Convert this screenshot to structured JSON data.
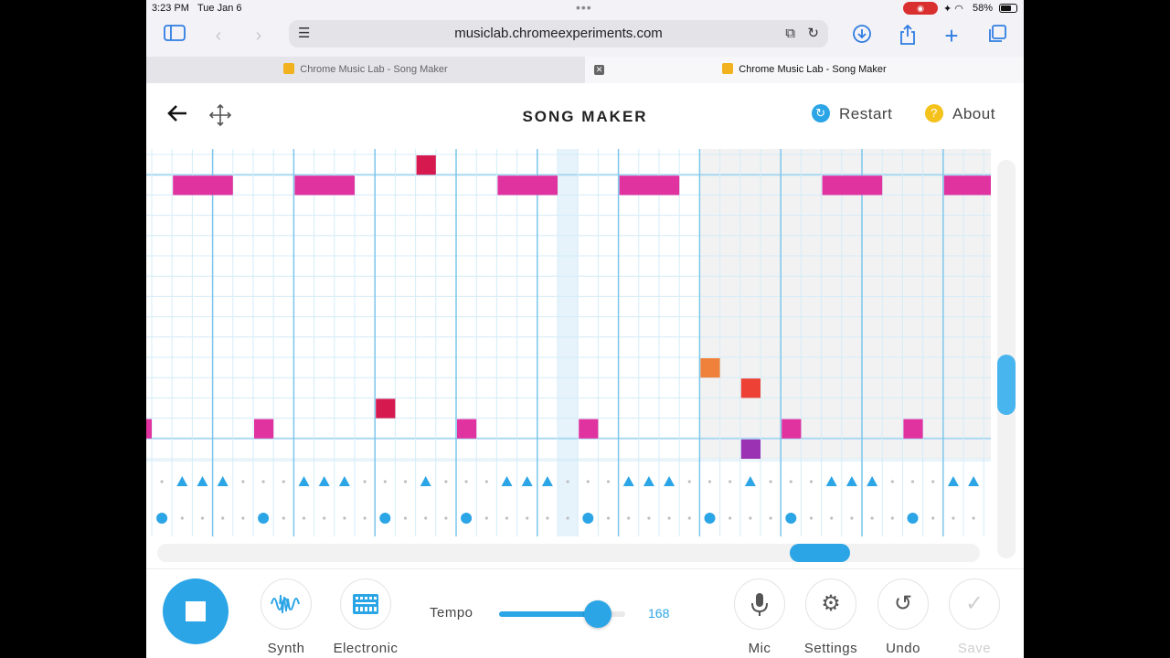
{
  "status_bar": {
    "time": "3:23 PM",
    "date": "Tue Jan 6",
    "battery": "58%"
  },
  "browser": {
    "url": "musiclab.chromeexperiments.com",
    "tabs": [
      {
        "label": "Chrome Music Lab - Song Maker",
        "active": false
      },
      {
        "label": "Chrome Music Lab - Song Maker",
        "active": true
      }
    ]
  },
  "app": {
    "title": "SONG MAKER",
    "restart_label": "Restart",
    "about_label": "About"
  },
  "grid": {
    "columns": 41,
    "melody_rows": 15,
    "bar_every": 4,
    "highlight_column": 20,
    "inactive_from_column": 27,
    "octave_line_rows": [
      1,
      14
    ],
    "notes": [
      {
        "col": 1,
        "row": 1,
        "len": 3,
        "color": "#e0339f"
      },
      {
        "col": 7,
        "row": 1,
        "len": 3,
        "color": "#e0339f"
      },
      {
        "col": 13,
        "row": 0,
        "len": 1,
        "color": "#d6194f"
      },
      {
        "col": 17,
        "row": 1,
        "len": 3,
        "color": "#e0339f"
      },
      {
        "col": 23,
        "row": 1,
        "len": 3,
        "color": "#e0339f"
      },
      {
        "col": 33,
        "row": 1,
        "len": 3,
        "color": "#e0339f"
      },
      {
        "col": 39,
        "row": 1,
        "len": 3,
        "color": "#e0339f"
      },
      {
        "col": 27,
        "row": 10,
        "len": 1,
        "color": "#f0813a"
      },
      {
        "col": 29,
        "row": 11,
        "len": 1,
        "color": "#ec4134"
      },
      {
        "col": 11,
        "row": 12,
        "len": 1,
        "color": "#d6194f"
      },
      {
        "col": -1,
        "row": 13,
        "len": 1,
        "color": "#e0339f"
      },
      {
        "col": 5,
        "row": 13,
        "len": 1,
        "color": "#e0339f"
      },
      {
        "col": 15,
        "row": 13,
        "len": 1,
        "color": "#e0339f"
      },
      {
        "col": 21,
        "row": 13,
        "len": 1,
        "color": "#e0339f"
      },
      {
        "col": 31,
        "row": 13,
        "len": 1,
        "color": "#e0339f"
      },
      {
        "col": 37,
        "row": 13,
        "len": 1,
        "color": "#e0339f"
      },
      {
        "col": 29,
        "row": 14,
        "len": 1,
        "color": "#9b31b3"
      }
    ],
    "triangles": [
      1,
      2,
      3,
      7,
      8,
      9,
      13,
      17,
      18,
      19,
      23,
      24,
      25,
      29,
      33,
      34,
      35,
      39,
      40
    ],
    "circles": [
      0,
      5,
      11,
      15,
      21,
      27,
      31,
      37
    ],
    "accent_color": "#2ba5e6"
  },
  "controls": {
    "synth_label": "Synth",
    "electronic_label": "Electronic",
    "tempo_label": "Tempo",
    "tempo_value": "168",
    "tempo_fraction": 0.78,
    "mic_label": "Mic",
    "settings_label": "Settings",
    "undo_label": "Undo",
    "save_label": "Save"
  }
}
